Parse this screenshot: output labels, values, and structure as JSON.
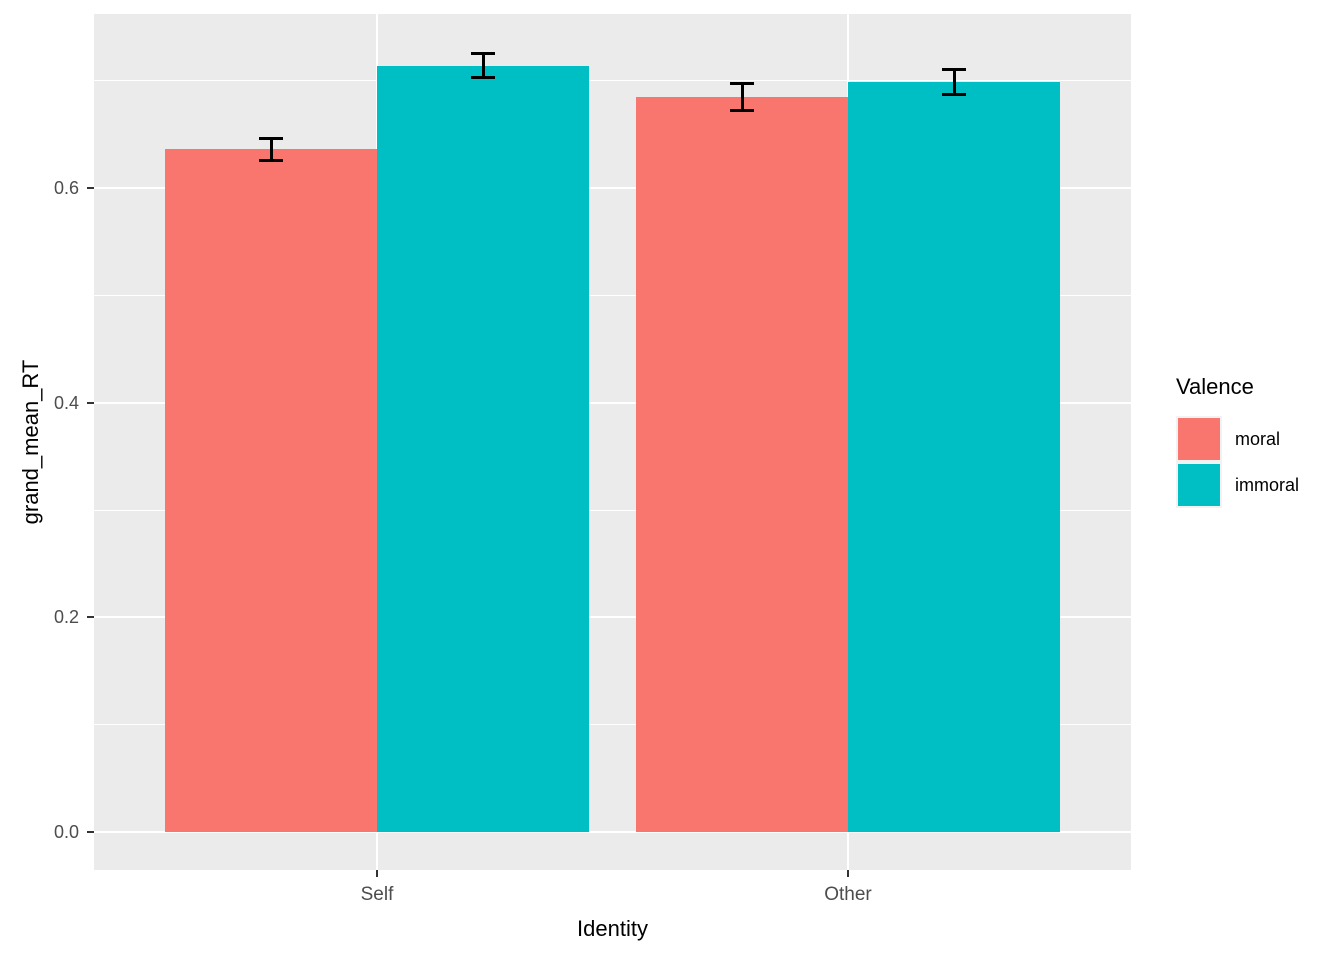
{
  "chart_data": {
    "type": "bar",
    "title": "",
    "xlabel": "Identity",
    "ylabel": "grand_mean_RT",
    "categories": [
      "Self",
      "Other"
    ],
    "series": [
      {
        "name": "moral",
        "color": "#F8766D",
        "values": [
          0.636,
          0.685
        ],
        "errors": [
          0.01,
          0.012
        ]
      },
      {
        "name": "immoral",
        "color": "#00BFC4",
        "values": [
          0.714,
          0.699
        ],
        "errors": [
          0.011,
          0.011
        ]
      }
    ],
    "y_axis": {
      "tick_values": [
        0.0,
        0.2,
        0.4,
        0.6
      ],
      "tick_labels": [
        "0.0",
        "0.2",
        "0.4",
        "0.6"
      ],
      "minor_tick_values": [
        0.1,
        0.3,
        0.5,
        0.7
      ],
      "range_min": -0.0355,
      "range_max": 0.7615,
      "grid": true
    },
    "legend": {
      "title": "Valence",
      "position": "right"
    },
    "colors": {
      "background": "#FFFFFF",
      "panel_background": "#EBEBEB",
      "grid": "#FFFFFF",
      "axis_text": "#4D4D4D",
      "axis_title": "#000000",
      "tick_mark": "#333333",
      "error_bar": "#000000"
    }
  }
}
